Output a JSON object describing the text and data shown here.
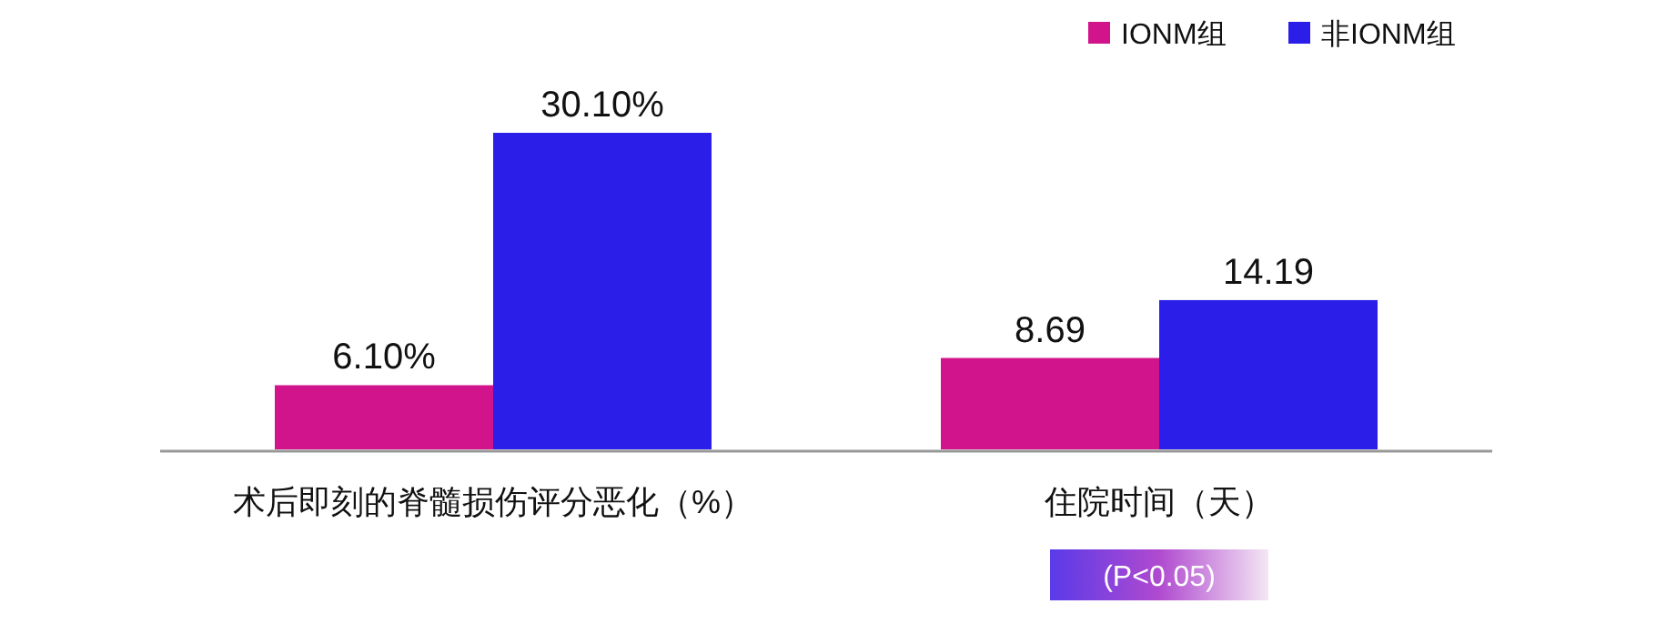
{
  "chart_data": {
    "type": "bar",
    "categories": [
      "术后即刻的脊髓损伤评分恶化（%）",
      "住院时间（天）"
    ],
    "series": [
      {
        "name": "IONM组",
        "color": "#d2148c",
        "values": [
          6.1,
          8.69
        ],
        "value_labels": [
          "6.10%",
          "8.69"
        ]
      },
      {
        "name": "非IONM组",
        "color": "#2a1ee8",
        "values": [
          30.1,
          14.19
        ],
        "value_labels": [
          "30.10%",
          "14.19"
        ]
      }
    ],
    "legend": "top right",
    "annotations": [
      "(P<0.05)"
    ]
  }
}
